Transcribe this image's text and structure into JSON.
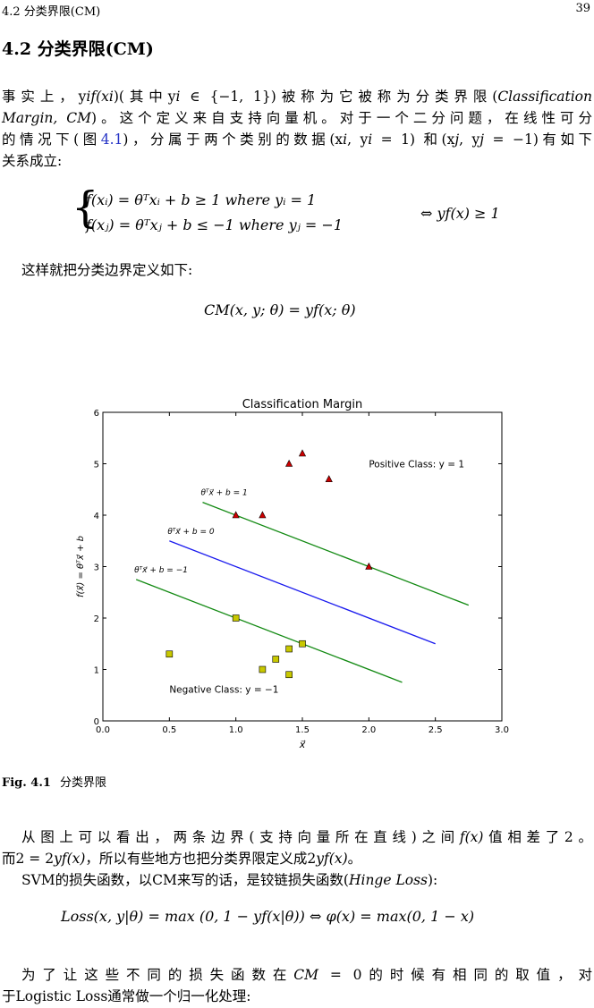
{
  "header": {
    "section": "4.2 分类界限(CM)",
    "page_number": "39"
  },
  "section_title": "4.2 分类界限(CM)",
  "intro": {
    "line1": "事实上，y",
    "line1b": "f(x",
    "line1c": ")(其中y",
    "line1d": " ∈ {−1, 1})被称为它被称为分类界限(",
    "line1e": "Classification",
    "line2a": "Margin, CM",
    "line2b": ")。这个定义来自支持向量机。对于一个二分问题，在线性可分",
    "line3a": "的情况下(图",
    "line3ref": "4.1",
    "line3b": ")，分属于两个类别的数据(x",
    "line3c": ", y",
    "line3d": " = 1) 和(x",
    "line3e": ", y",
    "line3f": " = −1)有如下",
    "line4": "关系成立:"
  },
  "equations": {
    "case1": "f(xᵢ) = θᵀxᵢ + b ≥ 1  where yᵢ = 1",
    "case2": "f(xⱼ) = θᵀxⱼ + b ≤ −1  where yⱼ = −1",
    "equiv": "⇔ yf(x) ≥ 1",
    "cm_def_text": "这样就把分类边界定义如下:",
    "cm": "CM(x, y; θ) = yf(x; θ)"
  },
  "chart_data": {
    "type": "scatter",
    "title": "Classification Margin",
    "xlabel": "x⃗",
    "ylabel": "f(x⃗) = θᵀx⃗ + b",
    "xlim": [
      0.0,
      3.0
    ],
    "ylim": [
      0,
      6
    ],
    "xticks": [
      "0.0",
      "0.5",
      "1.0",
      "1.5",
      "2.0",
      "2.5",
      "3.0"
    ],
    "yticks": [
      "0",
      "1",
      "2",
      "3",
      "4",
      "5",
      "6"
    ],
    "grid": false,
    "positive": {
      "label": "Positive Class: y = 1",
      "color": "#cc0000",
      "points": [
        [
          1.5,
          5.2
        ],
        [
          1.4,
          5.0
        ],
        [
          1.7,
          4.7
        ],
        [
          1.0,
          4.0
        ],
        [
          1.2,
          4.0
        ],
        [
          2.0,
          3.0
        ]
      ]
    },
    "negative": {
      "label": "Negative Class: y = −1",
      "color": "#c8c800",
      "points": [
        [
          1.0,
          2.0
        ],
        [
          0.5,
          1.3
        ],
        [
          1.5,
          1.5
        ],
        [
          1.4,
          1.4
        ],
        [
          1.3,
          1.2
        ],
        [
          1.2,
          1.0
        ],
        [
          1.4,
          0.9
        ]
      ]
    },
    "lines": [
      {
        "label": "θᵀx⃗ + b = 1",
        "color": "#138a13",
        "from": [
          0.75,
          4.25
        ],
        "to": [
          2.75,
          2.25
        ]
      },
      {
        "label": "θᵀx⃗ + b = 0",
        "color": "#1a1aee",
        "from": [
          0.5,
          3.5
        ],
        "to": [
          2.5,
          1.5
        ]
      },
      {
        "label": "θᵀx⃗ + b = −1",
        "color": "#138a13",
        "from": [
          0.25,
          2.75
        ],
        "to": [
          2.25,
          0.75
        ]
      }
    ]
  },
  "figure_caption": {
    "label": "Fig. 4.1",
    "text": "分类界限"
  },
  "after": {
    "p1a": "从图上可以看出，两条边界(支持向量所在直线)之间",
    "p1b": "f(x)",
    "p1c": "值相差了2。",
    "p2a": "而2 = 2",
    "p2b": "yf(x)",
    "p2c": "，所以有些地方也把分类界限定义成2",
    "p2d": "yf(x)",
    "p2e": "。",
    "p3a": "SVM的损失函数，以CM来写的话，是铰链损失函数(",
    "p3b": "Hinge Loss",
    "p3c": "):",
    "loss": "Loss(x, y|θ) = max (0, 1 − yf(x|θ)) ⇔ φ(x) = max(0, 1 − x)",
    "p4a": "为了让这些不同的损失函数在",
    "p4b": "CM",
    "p4c": " = 0",
    "p4d": "的时候有相同的取值，对",
    "p5": "于Logistic Loss通常做一个归一化处理:"
  }
}
